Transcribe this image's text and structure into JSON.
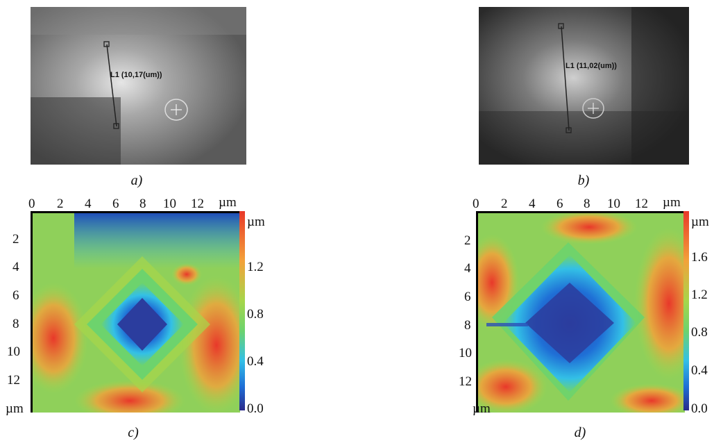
{
  "panels": {
    "a": {
      "caption": "a)",
      "measure": "L1 (10,17(um))"
    },
    "b": {
      "caption": "b)",
      "measure": "L1 (11,02(um))"
    },
    "c": {
      "caption": "c)",
      "x_ticks": [
        "0",
        "2",
        "4",
        "6",
        "8",
        "10",
        "12"
      ],
      "x_unit": "µm",
      "y_ticks": [
        "2",
        "4",
        "6",
        "8",
        "10",
        "12"
      ],
      "y_unit": "µm",
      "cbar_unit": "µm",
      "cbar_ticks": [
        "1.2",
        "0.8",
        "0.4",
        "0.0"
      ]
    },
    "d": {
      "caption": "d)",
      "x_ticks": [
        "0",
        "2",
        "4",
        "6",
        "8",
        "10",
        "12"
      ],
      "x_unit": "µm",
      "y_ticks": [
        "2",
        "4",
        "6",
        "8",
        "10",
        "12"
      ],
      "y_unit": "µm",
      "cbar_unit": "µm",
      "cbar_ticks": [
        "1.6",
        "1.2",
        "0.8",
        "0.4",
        "0.0"
      ]
    }
  },
  "colors": {
    "colormap": [
      "#2a2a8a",
      "#1f6fd6",
      "#33c0e6",
      "#6dd36d",
      "#a6d64a",
      "#f3a23a",
      "#e8382a"
    ]
  }
}
